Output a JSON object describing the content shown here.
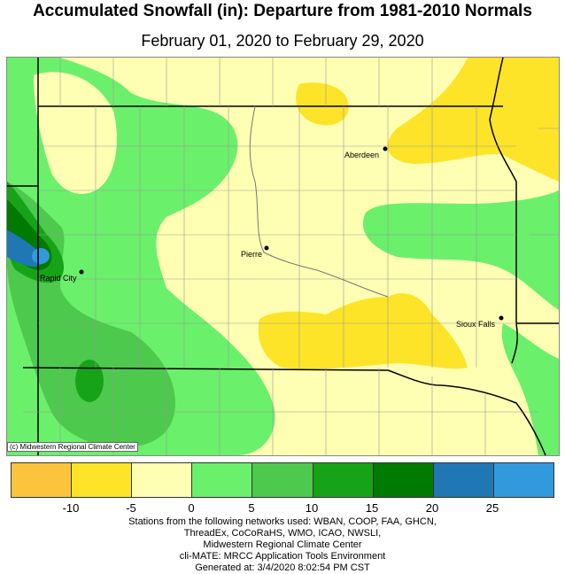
{
  "title": "Accumulated Snowfall (in): Departure from 1981-2010 Normals",
  "subtitle": "February 01, 2020 to February 29, 2020",
  "copyright": "(c) Midwestern Regional Climate Center",
  "cities": [
    {
      "name": "Aberdeen"
    },
    {
      "name": "Pierre"
    },
    {
      "name": "Rapid City"
    },
    {
      "name": "Sioux Falls"
    }
  ],
  "legend": {
    "colors": [
      "#fbc43c",
      "#fde428",
      "#ffffb3",
      "#6bf06b",
      "#4dc94d",
      "#17a317",
      "#007a00",
      "#1f78b4",
      "#3399dd"
    ],
    "ticks": [
      "-10",
      "-5",
      "0",
      "5",
      "10",
      "15",
      "20",
      "25"
    ]
  },
  "footer": {
    "line1": "Stations from the following networks used: WBAN, COOP, FAA, GHCN,",
    "line2": "ThreadEx, CoCoRaHS, WMO, ICAO, NWSLI,",
    "line3": "Midwestern Regional Climate Center",
    "line4": "cli-MATE: MRCC Application Tools Environment",
    "line5": "Generated at: 3/4/2020 8:02:54 PM CST"
  }
}
